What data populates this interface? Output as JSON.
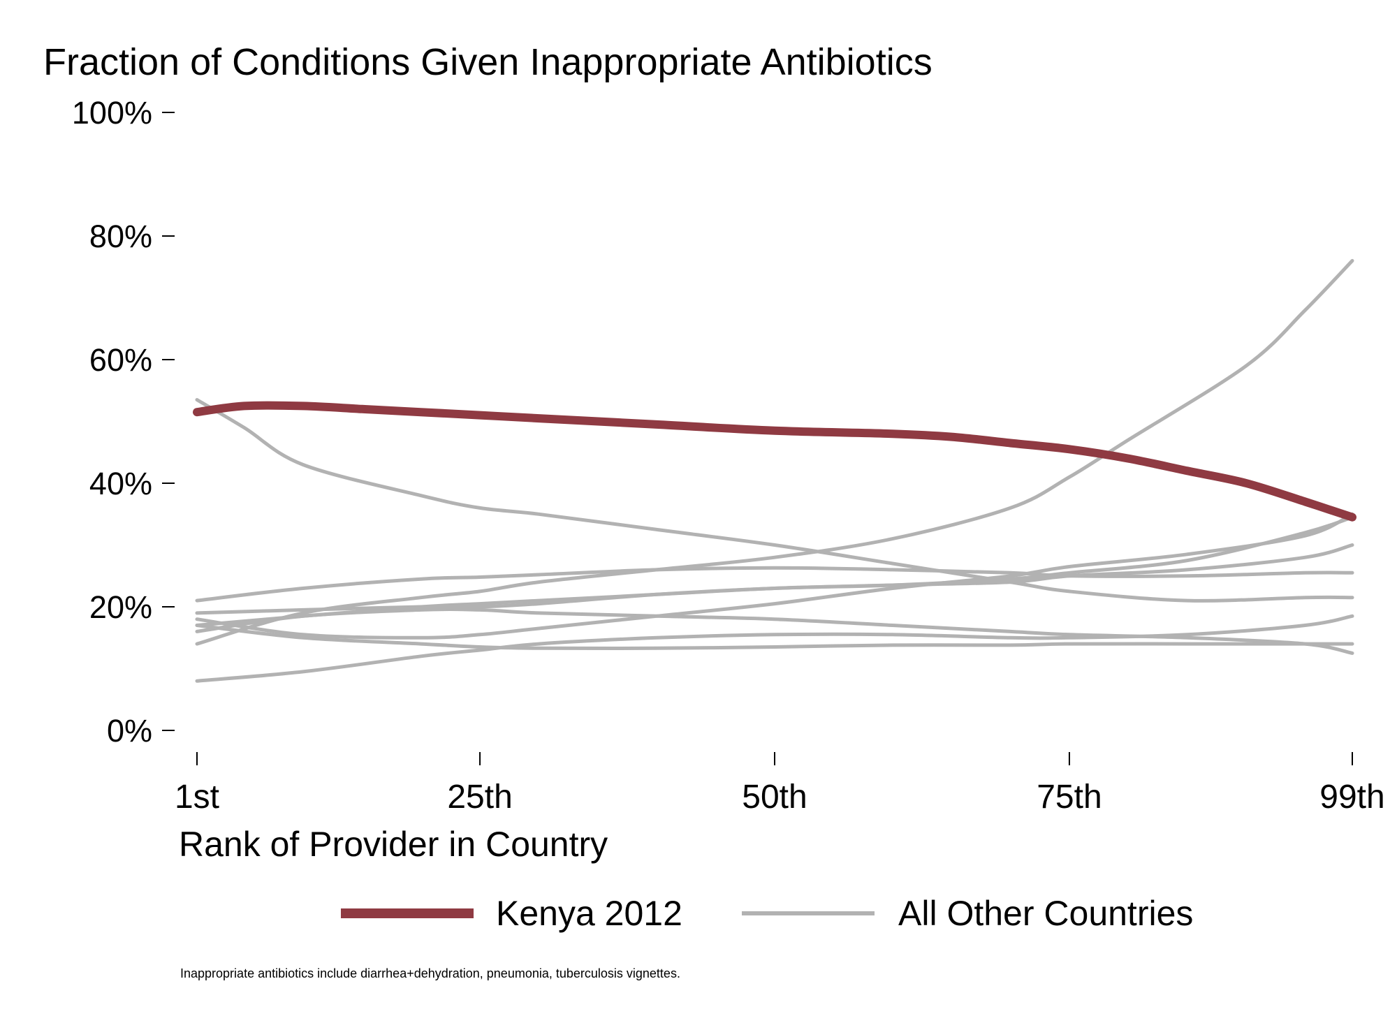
{
  "chart_data": {
    "type": "line",
    "title": "Fraction of Conditions Given Inappropriate Antibiotics",
    "xlabel": "Rank of Provider in Country",
    "ylabel": "",
    "note": "Inappropriate antibiotics include diarrhea+dehydration, pneumonia, tuberculosis vignettes.",
    "xlim": [
      1,
      99
    ],
    "ylim": [
      0,
      100
    ],
    "x_ticks": [
      1,
      25,
      50,
      75,
      99
    ],
    "x_tick_labels": [
      "1st",
      "25th",
      "50th",
      "75th",
      "99th"
    ],
    "y_ticks": [
      0,
      20,
      40,
      60,
      80,
      100
    ],
    "y_tick_labels": [
      "0%",
      "20%",
      "40%",
      "60%",
      "80%",
      "100%"
    ],
    "grid": false,
    "legend_position": "bottom",
    "legend": [
      {
        "label": "Kenya 2012",
        "color": "#8f3a42"
      },
      {
        "label": "All Other Countries",
        "color": "#b2b2b2"
      }
    ],
    "series": [
      {
        "group": "All Other Countries",
        "color": "#b2b2b2",
        "x": [
          1,
          5,
          10,
          20,
          25,
          30,
          40,
          50,
          60,
          70,
          75,
          85,
          95,
          99
        ],
        "y": [
          53.5,
          49,
          43,
          38,
          36,
          35,
          32.5,
          30,
          27,
          24,
          22.5,
          21,
          21.5,
          21.5
        ]
      },
      {
        "group": "All Other Countries",
        "color": "#b2b2b2",
        "x": [
          1,
          10,
          20,
          25,
          30,
          40,
          50,
          60,
          70,
          75,
          80,
          90,
          95,
          99
        ],
        "y": [
          14,
          19,
          21.5,
          22.5,
          24,
          26,
          28,
          31,
          36,
          41,
          47,
          59,
          68,
          76
        ]
      },
      {
        "group": "All Other Countries",
        "color": "#b2b2b2",
        "x": [
          1,
          10,
          20,
          25,
          30,
          40,
          50,
          60,
          70,
          75,
          85,
          95,
          99
        ],
        "y": [
          21,
          23,
          24.5,
          24.8,
          25.2,
          26,
          26.3,
          26,
          25.5,
          25,
          25,
          25.5,
          25.5
        ]
      },
      {
        "group": "All Other Countries",
        "color": "#b2b2b2",
        "x": [
          1,
          10,
          20,
          25,
          30,
          40,
          50,
          60,
          70,
          75,
          85,
          95,
          99
        ],
        "y": [
          17,
          18.5,
          20,
          20.5,
          21,
          22,
          23,
          23.5,
          24,
          25,
          26,
          28,
          30
        ]
      },
      {
        "group": "All Other Countries",
        "color": "#b2b2b2",
        "x": [
          1,
          10,
          20,
          25,
          30,
          40,
          50,
          60,
          70,
          75,
          85,
          95,
          99
        ],
        "y": [
          19,
          19.5,
          20,
          20,
          20.5,
          22,
          23,
          23.5,
          24.5,
          25.5,
          27.5,
          32,
          34.5
        ]
      },
      {
        "group": "All Other Countries",
        "color": "#b2b2b2",
        "x": [
          1,
          10,
          20,
          25,
          30,
          40,
          50,
          60,
          70,
          75,
          85,
          95,
          99
        ],
        "y": [
          16,
          18.5,
          19.5,
          19.5,
          19,
          18.5,
          18,
          17,
          16,
          15.5,
          15,
          14,
          12.5
        ]
      },
      {
        "group": "All Other Countries",
        "color": "#b2b2b2",
        "x": [
          1,
          10,
          20,
          25,
          30,
          40,
          50,
          60,
          70,
          75,
          85,
          95,
          99
        ],
        "y": [
          18,
          15.5,
          15,
          15.5,
          16.5,
          18.5,
          20.5,
          23,
          25,
          26.5,
          28.5,
          31.5,
          35
        ]
      },
      {
        "group": "All Other Countries",
        "color": "#b2b2b2",
        "x": [
          1,
          10,
          20,
          25,
          30,
          40,
          50,
          60,
          70,
          75,
          85,
          95,
          99
        ],
        "y": [
          17,
          15,
          14,
          13.5,
          13.3,
          13.3,
          13.5,
          13.8,
          13.8,
          14,
          14,
          14,
          14
        ]
      },
      {
        "group": "All Other Countries",
        "color": "#b2b2b2",
        "x": [
          1,
          10,
          20,
          25,
          30,
          40,
          50,
          60,
          70,
          75,
          85,
          95,
          99
        ],
        "y": [
          8,
          9.5,
          12,
          13,
          14,
          15,
          15.5,
          15.5,
          15,
          15,
          15.5,
          17,
          18.5
        ]
      },
      {
        "group": "Kenya 2012",
        "color": "#8f3a42",
        "x": [
          1,
          5,
          10,
          15,
          20,
          25,
          30,
          40,
          50,
          60,
          65,
          70,
          75,
          80,
          85,
          90,
          95,
          99
        ],
        "y": [
          51.5,
          52.5,
          52.5,
          52,
          51.5,
          51,
          50.5,
          49.5,
          48.5,
          48,
          47.5,
          46.5,
          45.5,
          44,
          42,
          40,
          37,
          34.5
        ]
      }
    ]
  }
}
